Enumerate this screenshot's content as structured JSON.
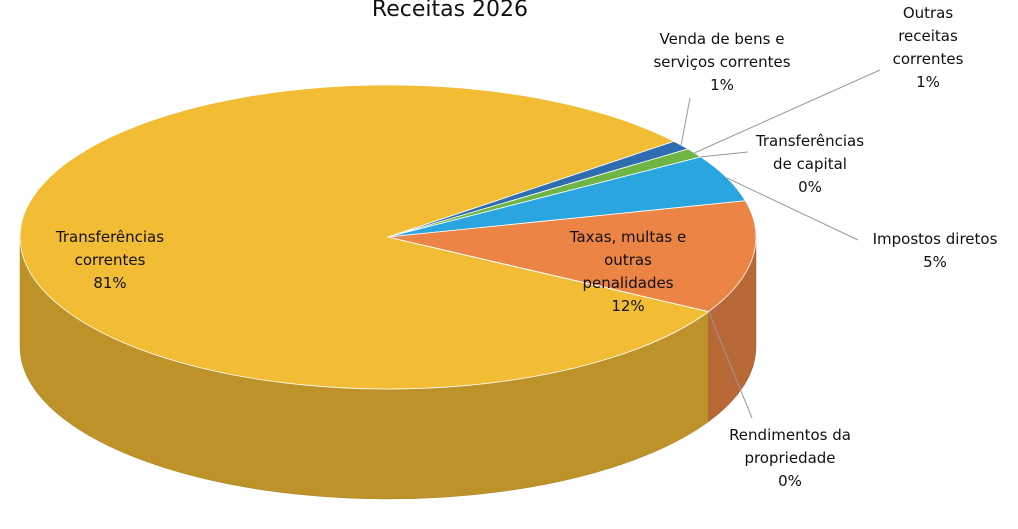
{
  "chart_data": {
    "type": "pie3d",
    "title": "Receitas 2026",
    "categories": [
      "Transferências correntes",
      "Venda de bens e serviços correntes",
      "Outras receitas correntes",
      "Transferências de capital",
      "Impostos diretos",
      "Taxas, multas e outras penalidades",
      "Rendimentos da propriedade"
    ],
    "values": [
      81,
      1,
      1,
      0,
      5,
      12,
      0
    ],
    "value_labels": [
      "81%",
      "1%",
      "1%",
      "0%",
      "5%",
      "12%",
      "0%"
    ],
    "colors": [
      "#f2bd34",
      "#2e6db0",
      "#6fb545",
      "#9aa7b4",
      "#2ba5e0",
      "#ec8446",
      "#8e3b2b"
    ],
    "legend": false
  }
}
